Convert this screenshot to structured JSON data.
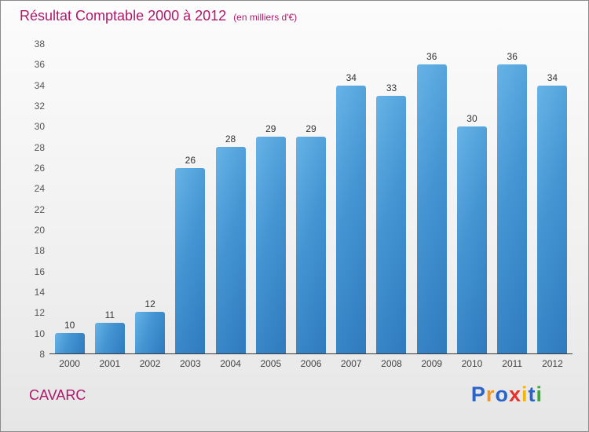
{
  "header": {
    "title": "Résultat Comptable 2000 à 2012",
    "subtitle": "(en milliers d'€)"
  },
  "footer": {
    "company": "CAVARC",
    "logo_letters": [
      {
        "ch": "P",
        "color": "#2a63c9"
      },
      {
        "ch": "r",
        "color": "#f7941d"
      },
      {
        "ch": "o",
        "color": "#2a63c9"
      },
      {
        "ch": "x",
        "color": "#e8302a"
      },
      {
        "ch": "i",
        "color": "#f7b500"
      },
      {
        "ch": "t",
        "color": "#2a63c9"
      },
      {
        "ch": "i",
        "color": "#3aaa35"
      }
    ]
  },
  "colors": {
    "title": "#b0186a",
    "bar_gradient_light": "#67b3e7",
    "bar_gradient_dark": "#2f7abd",
    "axis_line": "#3a3a3a",
    "tick_text": "#555555"
  },
  "chart_data": {
    "type": "bar",
    "title": "Résultat Comptable 2000 à 2012",
    "subtitle": "(en milliers d'€)",
    "categories": [
      "2000",
      "2001",
      "2002",
      "2003",
      "2004",
      "2005",
      "2006",
      "2007",
      "2008",
      "2009",
      "2010",
      "2011",
      "2012"
    ],
    "values": [
      10,
      11,
      12,
      26,
      28,
      29,
      29,
      34,
      33,
      36,
      30,
      36,
      34
    ],
    "xlabel": "",
    "ylabel": "",
    "ylim": [
      8,
      38
    ],
    "ytick_step": 2,
    "grid": false,
    "legend": "none",
    "bar_color": "#3b87c8"
  }
}
